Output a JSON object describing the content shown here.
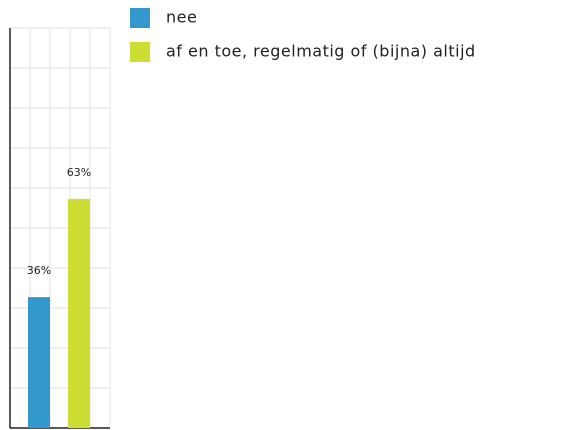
{
  "chart_data": {
    "type": "bar",
    "series": [
      {
        "name": "nee",
        "color": "#3399cc",
        "values": [
          36
        ],
        "value_labels": [
          "36%"
        ]
      },
      {
        "name": "af en toe, regelmatig of (bijna) altijd",
        "color": "#ccdd33",
        "values": [
          63
        ],
        "value_labels": [
          "63%"
        ]
      }
    ],
    "ylim": [
      0,
      110
    ],
    "yticks": [
      0,
      11,
      22,
      33,
      44,
      55,
      66,
      77,
      88,
      99,
      110
    ],
    "grid": true,
    "legend": "top-right"
  }
}
